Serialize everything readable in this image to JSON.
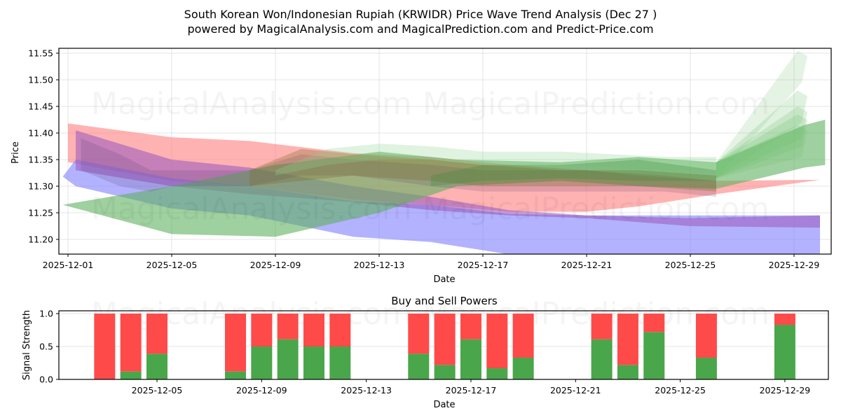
{
  "header": {
    "title_line1": "South Korean Won/Indonesian Rupiah (KRWIDR) Price Wave Trend Analysis (Dec 27 )",
    "title_line2": "powered by MagicalAnalysis.com and MagicalPrediction.com and Predict-Price.com"
  },
  "watermarks": [
    "MagicalAnalysis.com",
    "MagicalPrediction.com"
  ],
  "colors": {
    "red_band": "#ff7f7f",
    "blue_band": "#7f7fff",
    "purple_band": "#9f5fbf",
    "green_band": "#5fb05f",
    "buy": "#4aa64a",
    "sell": "#ff4a4a",
    "grid": "#dddddd"
  },
  "chart_data": [
    {
      "type": "area",
      "title": "",
      "xlabel": "Date",
      "ylabel": "Price",
      "ylim": [
        11.172,
        11.56
      ],
      "xlim": [
        "2025-11-30.6",
        "2025-12-30.8"
      ],
      "grid": true,
      "x_ticks": [
        "2025-12-01",
        "2025-12-05",
        "2025-12-09",
        "2025-12-13",
        "2025-12-17",
        "2025-12-21",
        "2025-12-25",
        "2025-12-29"
      ],
      "y_ticks": [
        "11.20",
        "11.25",
        "11.30",
        "11.35",
        "11.40",
        "11.45",
        "11.50",
        "11.55"
      ],
      "series": [
        {
          "name": "red-band",
          "x": [
            "2025-12-01",
            "2025-12-05",
            "2025-12-08",
            "2025-12-12",
            "2025-12-15",
            "2025-12-18",
            "2025-12-21",
            "2025-12-23",
            "2025-12-26",
            "2025-12-30"
          ],
          "upper": [
            11.418,
            11.392,
            11.385,
            11.362,
            11.355,
            11.34,
            11.33,
            11.32,
            11.31,
            11.312
          ],
          "lower": [
            11.345,
            11.31,
            11.3,
            11.275,
            11.265,
            11.252,
            11.252,
            11.262,
            11.285,
            11.312
          ]
        },
        {
          "name": "blue-band",
          "x": [
            "2025-11-30.8",
            "2025-12-01.3",
            "2025-12-05",
            "2025-12-08",
            "2025-12-12",
            "2025-12-15",
            "2025-12-18",
            "2025-12-21",
            "2025-12-25",
            "2025-12-30"
          ],
          "upper": [
            11.318,
            11.35,
            11.315,
            11.3,
            11.272,
            11.265,
            11.248,
            11.245,
            11.245,
            11.245
          ],
          "lower": [
            11.318,
            11.3,
            11.258,
            11.245,
            11.205,
            11.195,
            11.172,
            11.172,
            11.172,
            11.172
          ]
        },
        {
          "name": "purple-band",
          "x": [
            "2025-12-01.3",
            "2025-12-05",
            "2025-12-08",
            "2025-12-12",
            "2025-12-15",
            "2025-12-18",
            "2025-12-21",
            "2025-12-25",
            "2025-12-30"
          ],
          "upper": [
            11.405,
            11.35,
            11.335,
            11.3,
            11.28,
            11.255,
            11.245,
            11.24,
            11.245
          ],
          "lower": [
            11.33,
            11.3,
            11.285,
            11.27,
            11.255,
            11.245,
            11.24,
            11.225,
            11.222
          ]
        },
        {
          "name": "green-band",
          "x": [
            "2025-11-30.8",
            "2025-12-05",
            "2025-12-09",
            "2025-12-13",
            "2025-12-16",
            "2025-12-20",
            "2025-12-23",
            "2025-12-26",
            "2025-12-29.4",
            "2025-12-30.2"
          ],
          "upper": [
            11.265,
            11.3,
            11.34,
            11.365,
            11.35,
            11.345,
            11.355,
            11.345,
            11.415,
            11.425
          ],
          "lower": [
            11.265,
            11.21,
            11.205,
            11.25,
            11.3,
            11.31,
            11.3,
            11.295,
            11.335,
            11.34
          ]
        }
      ],
      "forecast_fan_tips": [
        11.555,
        11.48,
        11.45,
        11.435,
        11.415
      ],
      "last_marker_x": "2025-12-30"
    },
    {
      "type": "bar",
      "title": "Buy and Sell Powers",
      "xlabel": "Date",
      "ylabel": "Signal Strength",
      "ylim": [
        0,
        1.05
      ],
      "y_ticks": [
        "0.0",
        "0.5",
        "1.0"
      ],
      "x_ticks": [
        "2025-12-05",
        "2025-12-09",
        "2025-12-13",
        "2025-12-17",
        "2025-12-21",
        "2025-12-25",
        "2025-12-29"
      ],
      "stacked": true,
      "categories": [
        "2025-12-03",
        "2025-12-04",
        "2025-12-05",
        "2025-12-08",
        "2025-12-09",
        "2025-12-10",
        "2025-12-11",
        "2025-12-12",
        "2025-12-15",
        "2025-12-16",
        "2025-12-17",
        "2025-12-18",
        "2025-12-19",
        "2025-12-22",
        "2025-12-23",
        "2025-12-24",
        "2025-12-26",
        "2025-12-29"
      ],
      "series": [
        {
          "name": "Buy",
          "color": "#4aa64a",
          "values": [
            0.0,
            0.12,
            0.39,
            0.12,
            0.5,
            0.61,
            0.5,
            0.5,
            0.39,
            0.22,
            0.61,
            0.17,
            0.33,
            0.61,
            0.22,
            0.72,
            0.33,
            0.83
          ]
        },
        {
          "name": "Sell",
          "color": "#ff4a4a",
          "values": [
            1.0,
            0.88,
            0.61,
            0.88,
            0.5,
            0.39,
            0.5,
            0.5,
            0.61,
            0.78,
            0.39,
            0.83,
            0.67,
            0.39,
            0.78,
            0.28,
            0.67,
            0.17
          ]
        }
      ]
    }
  ]
}
